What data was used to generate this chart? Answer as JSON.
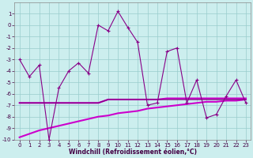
{
  "xlabel": "Windchill (Refroidissement éolien,°C)",
  "x": [
    0,
    1,
    2,
    3,
    4,
    5,
    6,
    7,
    8,
    9,
    10,
    11,
    12,
    13,
    14,
    15,
    16,
    17,
    18,
    19,
    20,
    21,
    22,
    23
  ],
  "line1_y": [
    -3.0,
    -4.5,
    -3.5,
    -10.0,
    -5.5,
    -4.0,
    -3.3,
    -4.2,
    0.0,
    -0.5,
    1.2,
    -0.2,
    -1.5,
    -7.0,
    -6.8,
    -2.3,
    -2.0,
    -6.8,
    -4.8,
    -8.1,
    -7.8,
    -6.2,
    -4.8,
    -6.8
  ],
  "line2_y": [
    -6.8,
    -6.8,
    -6.8,
    -6.8,
    -6.8,
    -6.8,
    -6.8,
    -6.8,
    -6.8,
    -6.5,
    -6.5,
    -6.5,
    -6.5,
    -6.5,
    -6.5,
    -6.4,
    -6.4,
    -6.4,
    -6.4,
    -6.4,
    -6.4,
    -6.4,
    -6.4,
    -6.4
  ],
  "line3_y": [
    -9.8,
    -9.5,
    -9.2,
    -9.0,
    -8.8,
    -8.6,
    -8.4,
    -8.2,
    -8.0,
    -7.9,
    -7.7,
    -7.6,
    -7.5,
    -7.3,
    -7.2,
    -7.1,
    -7.0,
    -6.9,
    -6.8,
    -6.7,
    -6.7,
    -6.6,
    -6.6,
    -6.5
  ],
  "line4_y": [
    -6.8,
    -6.8,
    -6.8,
    -6.8,
    -6.8,
    -6.8,
    -6.8,
    -6.8,
    -6.8,
    -6.5,
    -6.5,
    -6.5,
    -6.5,
    -6.5,
    -6.5,
    -6.5,
    -6.5,
    -6.5,
    -6.5,
    -6.5,
    -6.5,
    -6.5,
    -6.5,
    -6.5
  ],
  "line_color_dark": "#880088",
  "line_color_bright": "#cc00cc",
  "bg_color": "#cceeee",
  "grid_color": "#99cccc",
  "ylim": [
    -10,
    2
  ],
  "yticks": [
    -10,
    -9,
    -8,
    -7,
    -6,
    -5,
    -4,
    -3,
    -2,
    -1,
    0,
    1
  ],
  "xlim": [
    -0.5,
    23.5
  ],
  "tick_color": "#440044",
  "label_fontsize": 5.5,
  "tick_fontsize": 5.0
}
